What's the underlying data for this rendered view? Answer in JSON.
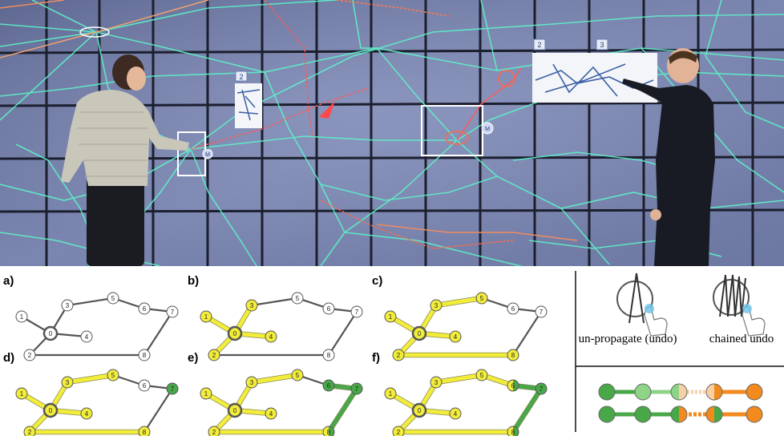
{
  "photo": {
    "tile_labels": [
      "2",
      "2",
      "3"
    ],
    "node_markers": [
      "M",
      "M"
    ]
  },
  "graph": {
    "nodes": [
      "0",
      "1",
      "2",
      "3",
      "4",
      "5",
      "6",
      "7",
      "8"
    ],
    "edges": [
      [
        "0",
        "1"
      ],
      [
        "0",
        "2"
      ],
      [
        "0",
        "3"
      ],
      [
        "0",
        "4"
      ],
      [
        "3",
        "5"
      ],
      [
        "5",
        "6"
      ],
      [
        "6",
        "7"
      ],
      [
        "7",
        "8"
      ],
      [
        "2",
        "8"
      ]
    ]
  },
  "panels": [
    {
      "label": "a)",
      "yellow": [],
      "green": [],
      "split": []
    },
    {
      "label": "b)",
      "yellow": [
        "0",
        "1",
        "2",
        "3",
        "4"
      ],
      "green": [],
      "split": []
    },
    {
      "label": "c)",
      "yellow": [
        "0",
        "1",
        "2",
        "3",
        "4",
        "5",
        "8"
      ],
      "green": [],
      "split": []
    },
    {
      "label": "d)",
      "yellow": [
        "0",
        "1",
        "2",
        "3",
        "4",
        "5",
        "8"
      ],
      "green": [
        "7"
      ],
      "split": []
    },
    {
      "label": "e)",
      "yellow": [
        "0",
        "1",
        "2",
        "3",
        "4",
        "5"
      ],
      "green": [
        "6",
        "7"
      ],
      "split": [
        "8"
      ]
    },
    {
      "label": "f)",
      "yellow": [
        "0",
        "1",
        "2",
        "3",
        "4",
        "5"
      ],
      "green": [
        "7"
      ],
      "split": [
        "6",
        "8"
      ]
    }
  ],
  "gestures": {
    "undo_label": "un-propagate (undo)",
    "chained_label": "chained undo"
  },
  "colors": {
    "yellow": "#f2ec3a",
    "green": "#48a848",
    "orange": "#f28a1e",
    "light_green": "#8ed488",
    "pale_orange": "#f7d0a6"
  }
}
